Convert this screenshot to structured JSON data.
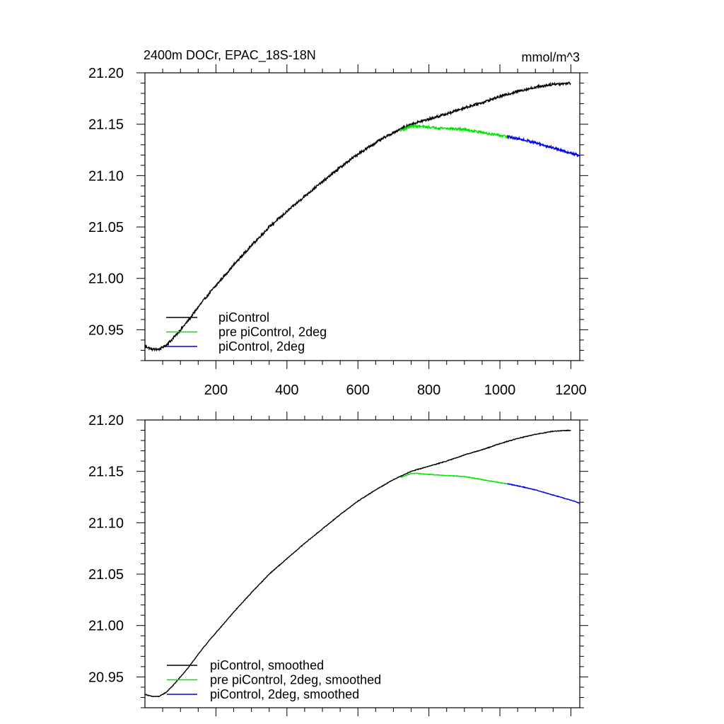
{
  "figure": {
    "title_left": "2400m DOCr, EPAC_18S-18N",
    "title_right": "mmol/m^3"
  },
  "chart_data": [
    {
      "type": "line",
      "title": "2400m DOCr, EPAC_18S-18N",
      "units": "mmol/m^3",
      "xlim": [
        0,
        1225
      ],
      "ylim": [
        20.92,
        21.2
      ],
      "xticks": [
        200,
        400,
        600,
        800,
        1000,
        1200
      ],
      "xtick_labels": [
        "200",
        "400",
        "600",
        "800",
        "1000",
        "1200"
      ],
      "yticks": [
        20.95,
        21.0,
        21.05,
        21.1,
        21.15,
        21.2
      ],
      "ytick_labels": [
        "20.95",
        "21.00",
        "21.05",
        "21.10",
        "21.15",
        "21.20"
      ],
      "legend_position": "bottom-left",
      "series": [
        {
          "name": "piControl",
          "color": "#000000",
          "noise": 0.0012,
          "x": [
            0,
            20,
            40,
            60,
            80,
            100,
            120,
            150,
            180,
            200,
            250,
            300,
            350,
            400,
            450,
            500,
            550,
            600,
            650,
            700,
            750,
            800,
            850,
            900,
            950,
            1000,
            1050,
            1100,
            1150,
            1200
          ],
          "y": [
            20.934,
            20.931,
            20.931,
            20.935,
            20.942,
            20.95,
            20.958,
            20.972,
            20.985,
            20.993,
            21.013,
            21.032,
            21.05,
            21.065,
            21.08,
            21.094,
            21.108,
            21.121,
            21.132,
            21.142,
            21.15,
            21.155,
            21.16,
            21.166,
            21.171,
            21.177,
            21.182,
            21.186,
            21.189,
            21.19
          ]
        },
        {
          "name": "pre piControl, 2deg",
          "color": "#00e600",
          "noise": 0.0012,
          "x": [
            720,
            750,
            770,
            800,
            850,
            900,
            950,
            1000,
            1020
          ],
          "y": [
            21.144,
            21.148,
            21.148,
            21.147,
            21.146,
            21.145,
            21.142,
            21.139,
            21.138
          ]
        },
        {
          "name": "piControl, 2deg",
          "color": "#0000e6",
          "noise": 0.0012,
          "x": [
            1020,
            1050,
            1100,
            1150,
            1200,
            1225
          ],
          "y": [
            21.138,
            21.136,
            21.132,
            21.127,
            21.122,
            21.119
          ]
        }
      ]
    },
    {
      "type": "line",
      "xlim": [
        0,
        1225
      ],
      "ylim": [
        20.92,
        21.2
      ],
      "xticks": [
        200,
        400,
        600,
        800,
        1000,
        1200
      ],
      "yticks": [
        20.95,
        21.0,
        21.05,
        21.1,
        21.15,
        21.2
      ],
      "ytick_labels": [
        "20.95",
        "21.00",
        "21.05",
        "21.10",
        "21.15",
        "21.20"
      ],
      "legend_position": "bottom-left",
      "series": [
        {
          "name": "piControl, smoothed",
          "color": "#000000",
          "noise": 0.0003,
          "x": [
            0,
            20,
            40,
            60,
            80,
            100,
            120,
            150,
            180,
            200,
            250,
            300,
            350,
            400,
            450,
            500,
            550,
            600,
            650,
            700,
            750,
            800,
            850,
            900,
            950,
            1000,
            1050,
            1100,
            1150,
            1200
          ],
          "y": [
            20.933,
            20.931,
            20.931,
            20.935,
            20.942,
            20.95,
            20.958,
            20.972,
            20.985,
            20.993,
            21.013,
            21.032,
            21.05,
            21.065,
            21.08,
            21.094,
            21.108,
            21.121,
            21.132,
            21.142,
            21.15,
            21.155,
            21.16,
            21.166,
            21.171,
            21.177,
            21.182,
            21.186,
            21.189,
            21.19
          ]
        },
        {
          "name": "pre piControl, 2deg, smoothed",
          "color": "#00e600",
          "noise": 0.0003,
          "x": [
            720,
            750,
            770,
            800,
            850,
            900,
            950,
            1000,
            1020
          ],
          "y": [
            21.144,
            21.148,
            21.148,
            21.147,
            21.146,
            21.145,
            21.142,
            21.139,
            21.138
          ]
        },
        {
          "name": "piControl, 2deg, smoothed",
          "color": "#0000e6",
          "noise": 0.0003,
          "x": [
            1020,
            1050,
            1100,
            1150,
            1200,
            1225
          ],
          "y": [
            21.138,
            21.136,
            21.132,
            21.127,
            21.122,
            21.119
          ]
        }
      ]
    }
  ]
}
